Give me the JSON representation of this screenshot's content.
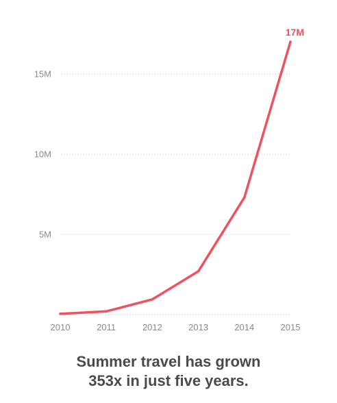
{
  "chart_data": {
    "type": "line",
    "categories": [
      "2010",
      "2011",
      "2012",
      "2013",
      "2014",
      "2015"
    ],
    "values": [
      0.048,
      0.2,
      0.95,
      2.7,
      7.3,
      17.0
    ],
    "ylim": [
      0,
      17
    ],
    "y_ticks": [
      {
        "value": 5,
        "label": "5M"
      },
      {
        "value": 10,
        "label": "10M"
      },
      {
        "value": 15,
        "label": "15M"
      }
    ],
    "end_label": "17M",
    "grid": "horizontal dotted",
    "title": "",
    "xlabel": "",
    "ylabel": "",
    "line_color": "#f0515e"
  },
  "caption": {
    "line1": "Summer travel has grown",
    "line2": "353x in just five years."
  }
}
